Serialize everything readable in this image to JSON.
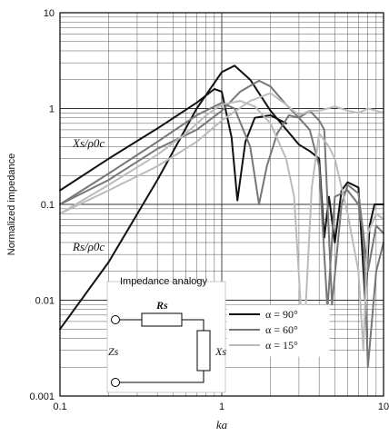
{
  "chart_data": {
    "type": "line",
    "title": "",
    "xlabel": "ka",
    "ylabel": "Normalized impedance",
    "x_scale": "log",
    "y_scale": "log",
    "xlim": [
      0.1,
      10
    ],
    "ylim": [
      0.001,
      10
    ],
    "x_ticks": [
      "0.1",
      "1",
      "10"
    ],
    "y_ticks": [
      "0.001",
      "0.01",
      "0.1",
      "1",
      "10"
    ],
    "grid": true,
    "curve_labels": {
      "reactance": "Xs/ρ0c",
      "resistance": "Rs/ρ0c"
    },
    "legend_position": "lower-right",
    "series": [
      {
        "name": "α = 90°",
        "color": "#111111",
        "quantity": "reactance",
        "x": [
          0.1,
          0.2,
          0.4,
          0.7,
          0.9,
          1.0,
          1.15,
          1.25,
          1.4,
          1.6,
          2.0,
          2.5
        ],
        "y": [
          0.14,
          0.3,
          0.62,
          1.15,
          1.6,
          1.5,
          0.5,
          0.11,
          0.45,
          0.8,
          0.85,
          0.7
        ]
      },
      {
        "name": "α = 90°",
        "color": "#111111",
        "quantity": "resistance",
        "x": [
          0.1,
          0.2,
          0.4,
          0.7,
          1.0,
          1.2,
          1.5,
          2.0,
          3.0,
          3.5,
          4.0,
          4.3,
          4.6,
          5.0,
          5.5,
          6.0,
          7.0,
          7.7,
          8.2,
          8.8,
          9.5,
          10
        ],
        "y": [
          0.005,
          0.025,
          0.18,
          1.0,
          2.4,
          2.8,
          2.0,
          0.95,
          0.42,
          0.36,
          0.3,
          0.045,
          0.12,
          0.04,
          0.14,
          0.17,
          0.15,
          0.01,
          0.06,
          0.1,
          0.1,
          0.1
        ]
      },
      {
        "name": "α = 60°",
        "color": "#777777",
        "quantity": "reactance",
        "x": [
          0.1,
          0.2,
          0.4,
          0.7,
          1.0,
          1.2,
          1.5,
          1.7,
          1.9,
          2.2,
          2.6,
          3.0,
          3.5,
          4.0,
          4.5,
          5.0,
          6.0,
          7.0,
          7.5,
          8.0,
          9.0,
          10
        ],
        "y": [
          0.1,
          0.21,
          0.45,
          0.85,
          1.15,
          1.0,
          0.4,
          0.1,
          0.25,
          0.55,
          0.85,
          0.8,
          0.6,
          0.25,
          0.008,
          0.12,
          0.14,
          0.1,
          0.05,
          0.002,
          0.02,
          0.04
        ]
      },
      {
        "name": "α = 60°",
        "color": "#777777",
        "quantity": "resistance",
        "x": [
          0.1,
          0.2,
          0.4,
          0.7,
          1.0,
          1.3,
          1.7,
          2.0,
          2.5,
          3.0,
          3.5,
          4.0,
          4.3,
          4.8,
          5.5,
          6.0,
          7.0,
          8.0,
          9.0,
          10
        ],
        "y": [
          0.1,
          0.18,
          0.38,
          0.6,
          0.95,
          1.5,
          1.95,
          1.7,
          1.1,
          0.8,
          0.95,
          0.75,
          0.6,
          0.009,
          0.1,
          0.16,
          0.13,
          0.02,
          0.06,
          0.05
        ]
      },
      {
        "name": "α = 15°",
        "color": "#bbbbbb",
        "quantity": "reactance",
        "x": [
          0.1,
          0.2,
          0.4,
          0.6,
          0.8,
          1.0,
          1.3,
          1.6,
          2.0,
          2.5,
          2.8,
          3.2,
          3.6,
          4.0,
          4.6,
          5.0,
          6.0,
          7.0,
          7.5,
          8.0,
          9.0,
          10
        ],
        "y": [
          0.08,
          0.16,
          0.33,
          0.55,
          0.85,
          1.1,
          1.2,
          1.05,
          0.7,
          0.3,
          0.12,
          0.003,
          0.15,
          0.55,
          0.4,
          0.3,
          0.08,
          0.02,
          0.003,
          0.05,
          0.08,
          0.07
        ]
      },
      {
        "name": "α = 15°",
        "color": "#bbbbbb",
        "quantity": "resistance",
        "x": [
          0.1,
          0.2,
          0.4,
          0.7,
          1.0,
          1.5,
          2.0,
          2.5,
          3.0,
          3.5,
          4.0,
          5.0,
          6.0,
          7.0,
          8.0,
          9.0,
          10
        ],
        "y": [
          0.08,
          0.14,
          0.25,
          0.45,
          0.75,
          1.2,
          1.45,
          1.1,
          0.85,
          0.95,
          0.95,
          1.05,
          0.95,
          0.9,
          1.0,
          0.95,
          0.9
        ]
      }
    ]
  },
  "inset": {
    "title": "Impedance analogy",
    "z_label": "Zs",
    "r_label": "Rs",
    "x_label": "Xs"
  },
  "legend": [
    {
      "label": "α = 90°",
      "color": "#111111"
    },
    {
      "label": "α = 60°",
      "color": "#777777"
    },
    {
      "label": "α = 15°",
      "color": "#bbbbbb"
    }
  ]
}
